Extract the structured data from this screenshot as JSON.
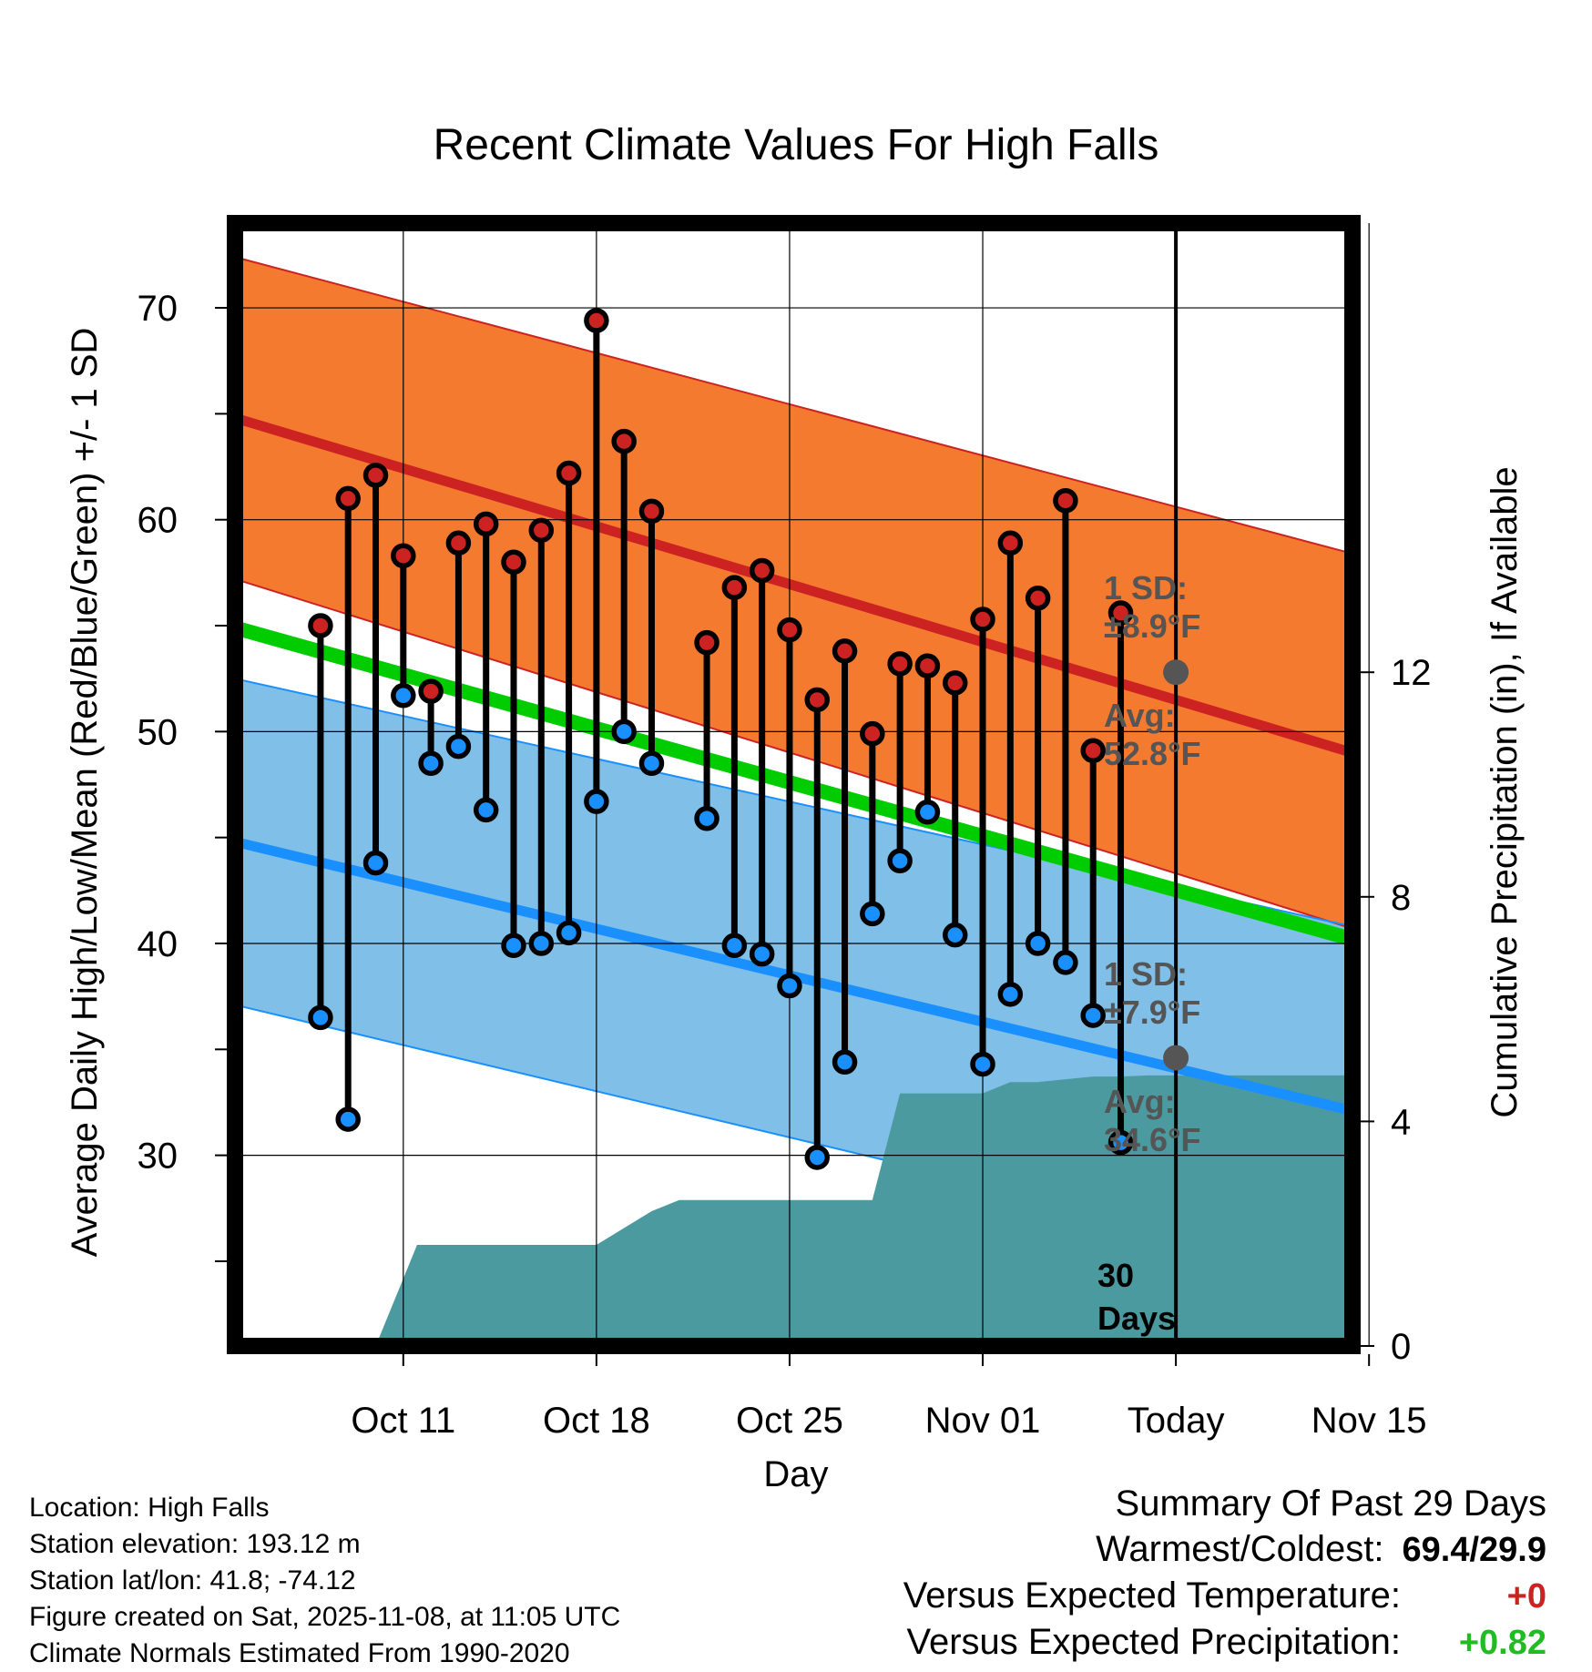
{
  "chart_data": {
    "type": "line",
    "title": "Recent Climate Values For High Falls",
    "xlabel": "Day",
    "ylabel": "Average Daily High/Low/Mean (Red/Blue/Green) +/- 1 SD",
    "y2label": "Cumulative Precipitation (in), If Available",
    "ylim": [
      21,
      74
    ],
    "y2lim": [
      0,
      20
    ],
    "xlim": [
      -33.1,
      7.4
    ],
    "grid": true,
    "x_ticks": [
      {
        "day": -27,
        "label": "Oct 11"
      },
      {
        "day": -20,
        "label": "Oct 18"
      },
      {
        "day": -13,
        "label": "Oct 25"
      },
      {
        "day": -6,
        "label": "Nov 01"
      },
      {
        "day": 1,
        "label": "Today"
      },
      {
        "day": 8,
        "label": "Nov 15"
      }
    ],
    "y_ticks": [
      30,
      40,
      50,
      60,
      70
    ],
    "y2_ticks": [
      0,
      4,
      8,
      12
    ],
    "normals": {
      "x": [
        -33.1,
        7.4
      ],
      "high_avg": [
        64.8,
        49.0
      ],
      "high_sd_upper": [
        72.4,
        58.4
      ],
      "high_sd_lower": [
        57.2,
        40.7
      ],
      "low_avg": [
        44.8,
        32.1
      ],
      "low_sd_upper": [
        52.5,
        40.8
      ],
      "low_sd_lower": [
        37.1,
        24.5
      ],
      "mean_avg": [
        54.9,
        40.2
      ]
    },
    "series": [
      {
        "name": "High",
        "color": "#cc2222",
        "x": [
          -30,
          -29,
          -28,
          -27,
          -26,
          -25,
          -24,
          -23,
          -22,
          -21,
          -20,
          -19,
          -18,
          -16,
          -15,
          -14,
          -13,
          -12,
          -11,
          -10,
          -9,
          -8,
          -7,
          -6,
          -5,
          -4,
          -3,
          -2,
          -1,
          0
        ],
        "values": [
          55.0,
          61.0,
          62.1,
          58.3,
          51.9,
          58.9,
          59.8,
          58.0,
          59.5,
          62.2,
          69.4,
          63.7,
          60.4,
          54.2,
          56.8,
          57.6,
          54.8,
          51.5,
          53.8,
          49.9,
          53.2,
          53.1,
          52.3,
          55.3,
          58.9,
          56.3,
          60.9,
          49.1,
          55.6,
          null
        ]
      },
      {
        "name": "Low",
        "color": "#1a90ff",
        "x": [
          -30,
          -29,
          -28,
          -27,
          -26,
          -25,
          -24,
          -23,
          -22,
          -21,
          -20,
          -19,
          -18,
          -16,
          -15,
          -14,
          -13,
          -12,
          -11,
          -10,
          -9,
          -8,
          -7,
          -6,
          -5,
          -4,
          -3,
          -2,
          -1,
          0
        ],
        "values": [
          36.5,
          31.7,
          43.8,
          51.7,
          48.5,
          49.3,
          46.3,
          39.9,
          40.0,
          40.5,
          46.7,
          50.0,
          48.5,
          45.9,
          39.9,
          39.5,
          38.0,
          29.9,
          34.4,
          41.4,
          43.9,
          46.2,
          40.4,
          34.3,
          37.6,
          40.0,
          39.1,
          36.6,
          30.6,
          null
        ]
      }
    ],
    "precip": {
      "x": [
        -29.3,
        -28,
        -26.5,
        -20,
        -19,
        -18,
        -17,
        -10,
        -9,
        -6,
        -5,
        -4,
        -3,
        -2,
        -1,
        0,
        7.4
      ],
      "values": [
        0,
        0,
        1.8,
        1.8,
        2.1,
        2.4,
        2.6,
        2.6,
        4.5,
        4.5,
        4.7,
        4.7,
        4.75,
        4.8,
        4.8,
        4.82,
        4.82
      ]
    },
    "today_marker": {
      "day": 1,
      "high_avg": 52.8,
      "low_avg": 34.6
    }
  },
  "annotations": {
    "high_sd_label": "1 SD:",
    "high_sd_value": "±8.9°F",
    "high_avg_label": "Avg:",
    "high_avg_value": "52.8°F",
    "low_sd_label": "1 SD:",
    "low_sd_value": "±7.9°F",
    "low_avg_label": "Avg:",
    "low_avg_value": "34.6°F",
    "days_value": "30",
    "days_label": "Days"
  },
  "colors": {
    "high_band": "#f47a30",
    "high_line": "#cc2222",
    "low_band": "#80c0e8",
    "low_line": "#1a90ff",
    "mean_line": "#00cc00",
    "precip": "#4a9aa0",
    "marker_grey": "#555555"
  },
  "footer_left": {
    "location": "Location: High Falls",
    "elevation": "Station elevation: 193.12 m",
    "latlon": "Station lat/lon: 41.8; -74.12",
    "created": "Figure created on Sat, 2025-11-08, at 11:05 UTC",
    "normals": "Climate Normals Estimated From 1990-2020"
  },
  "footer_right": {
    "summary_title": "Summary Of Past 29 Days",
    "warm_cold_label": "Warmest/Coldest:",
    "warm_cold_value": "69.4/29.9",
    "temp_label": "Versus Expected Temperature:",
    "temp_value": "+0",
    "temp_color": "#cc2222",
    "precip_label": "Versus Expected Precipitation:",
    "precip_value": "+0.82",
    "precip_color": "#22bb22"
  }
}
